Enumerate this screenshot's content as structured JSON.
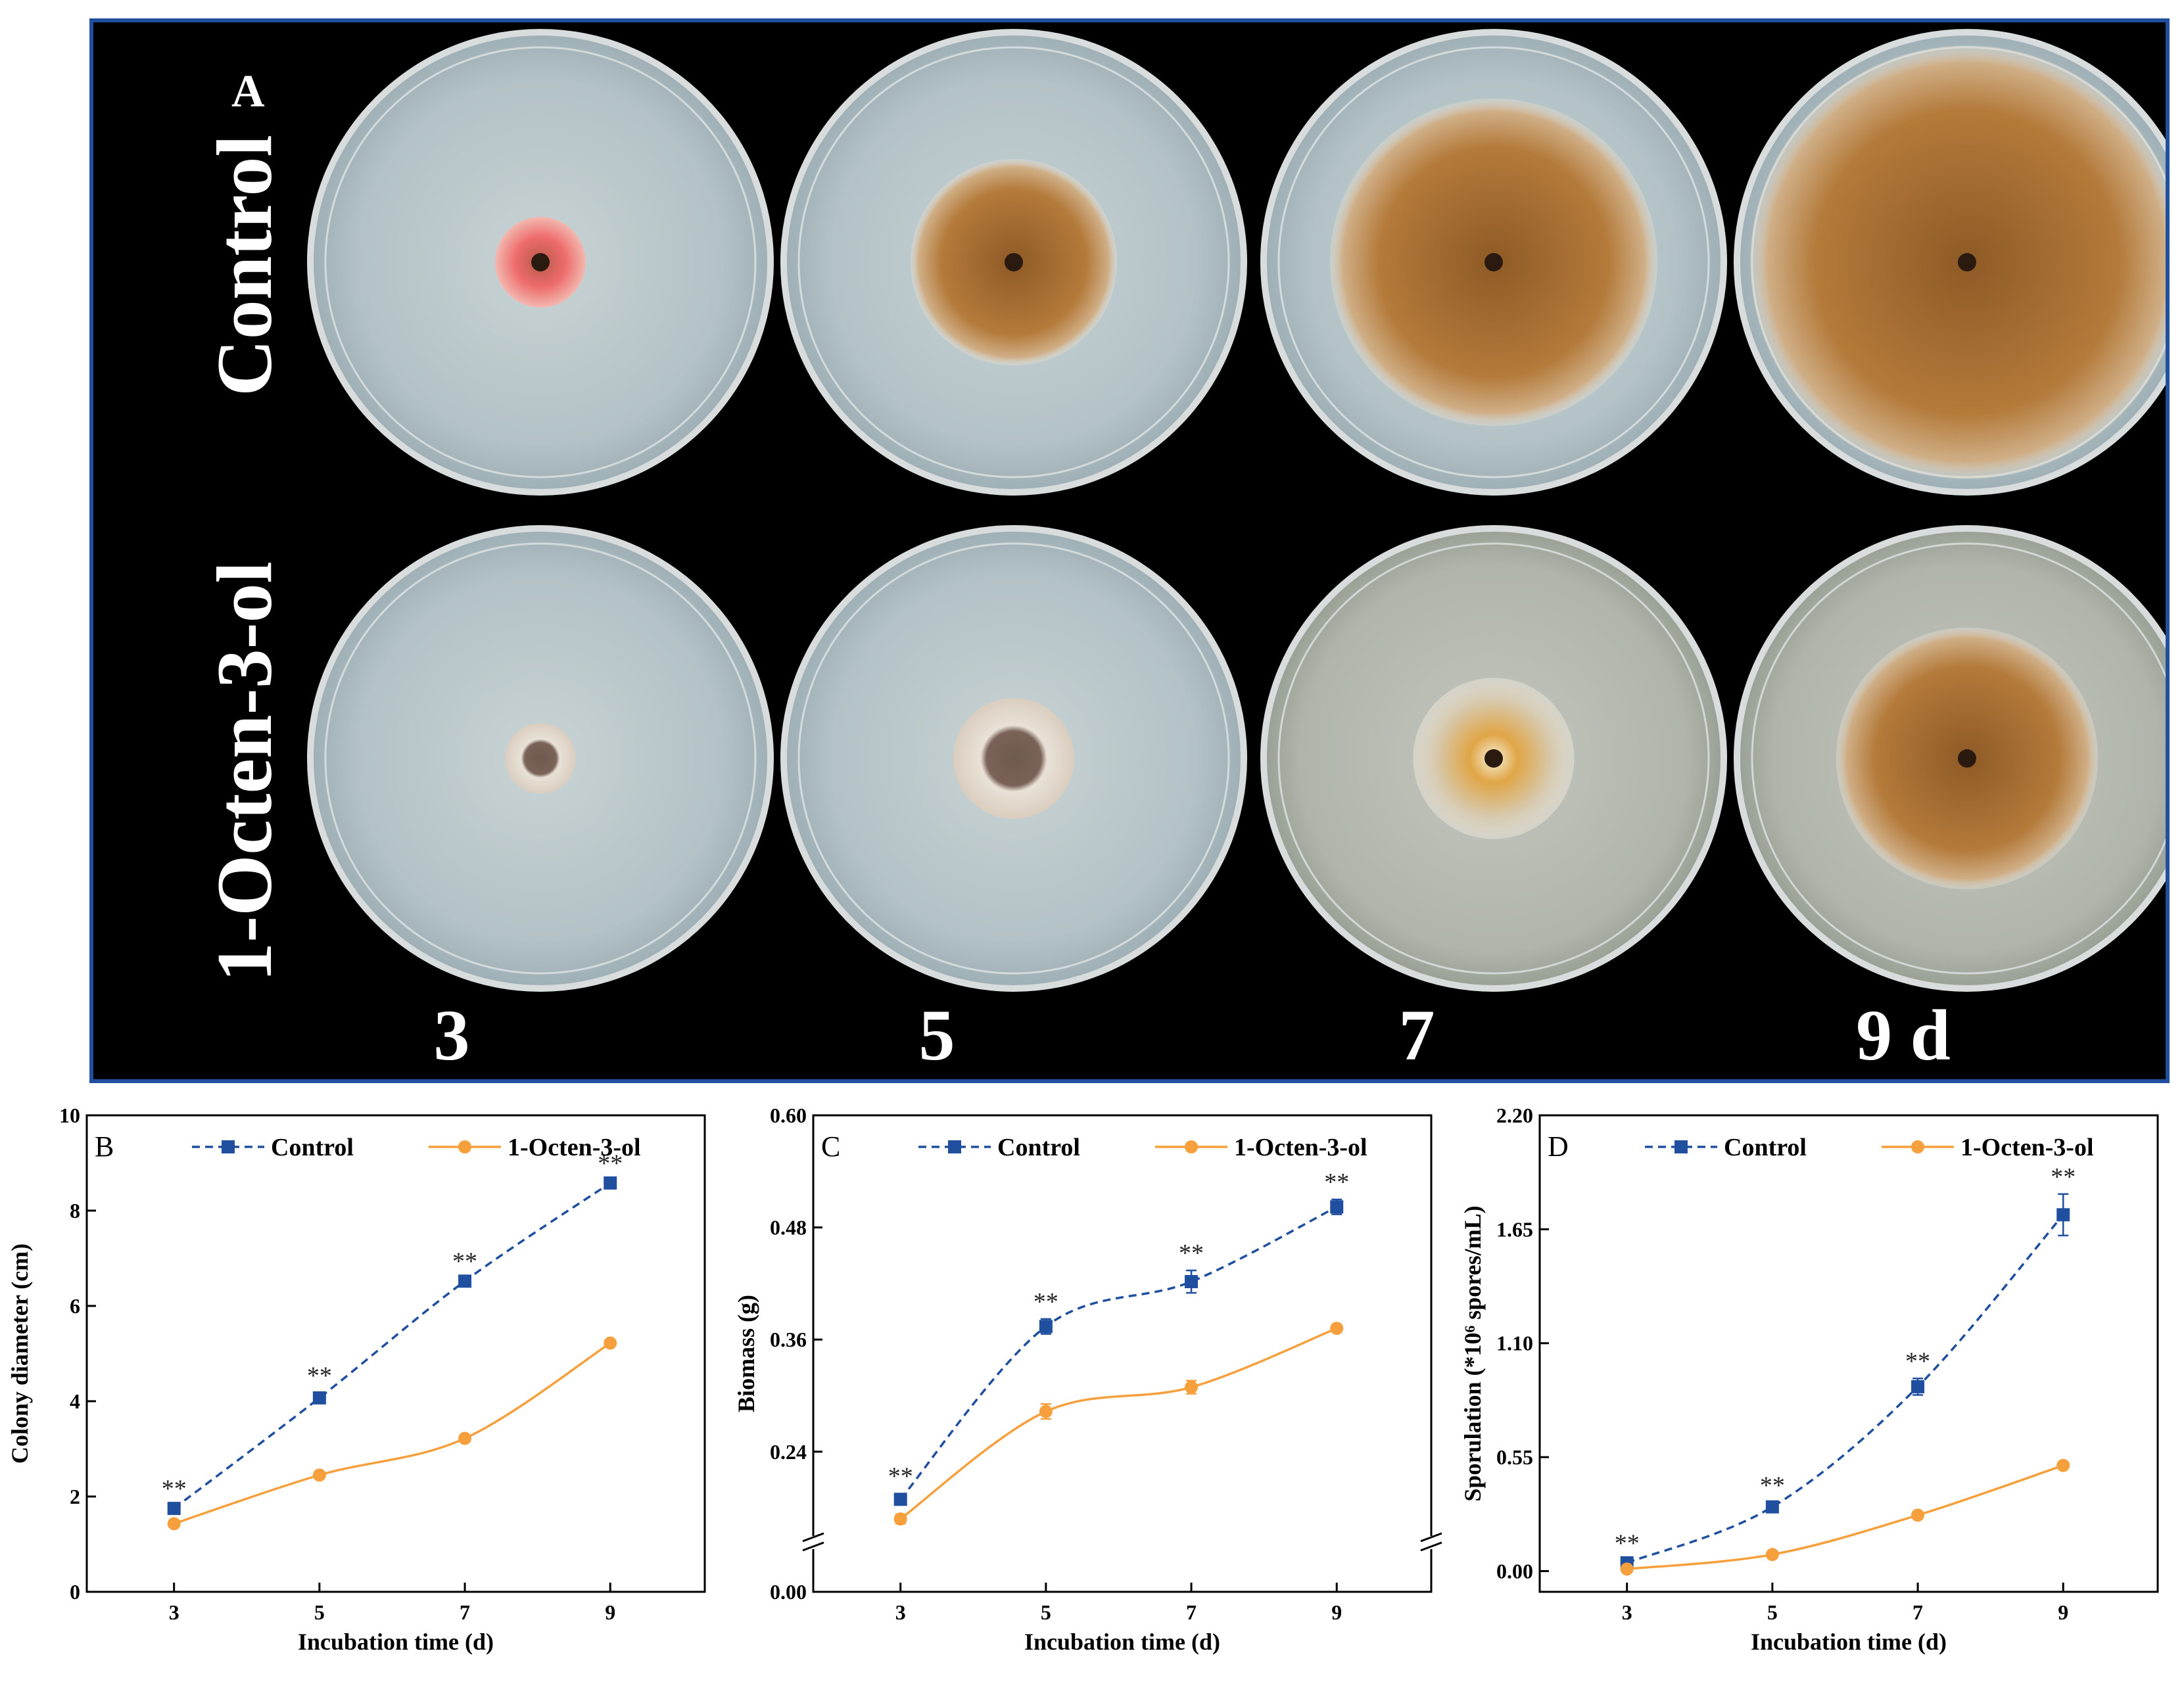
{
  "panel_a": {
    "label": "A",
    "row_labels": [
      "Control",
      "1-Octen-3-ol"
    ],
    "day_labels": [
      "3",
      "5",
      "7",
      "9 d"
    ],
    "colors": {
      "background": "#000000",
      "border": "#1f4f9e",
      "agar": "#b9c8cc",
      "colony_tan": "#b47a3a",
      "colony_pink": "#e8707a"
    },
    "colonies": {
      "control": [
        {
          "day": "3",
          "diameter_cm": 1.8
        },
        {
          "day": "5",
          "diameter_cm": 4.1
        },
        {
          "day": "7",
          "diameter_cm": 6.5
        },
        {
          "day": "9",
          "diameter_cm": 8.6
        }
      ],
      "treated": [
        {
          "day": "3",
          "diameter_cm": 1.4
        },
        {
          "day": "5",
          "diameter_cm": 2.4
        },
        {
          "day": "7",
          "diameter_cm": 3.2
        },
        {
          "day": "9",
          "diameter_cm": 5.2
        }
      ]
    }
  },
  "chart_data": [
    {
      "panel": "B",
      "type": "line",
      "xlabel": "Incubation time (d)",
      "ylabel": "Colony diameter (cm)",
      "x": [
        3,
        5,
        7,
        9
      ],
      "xticks": [
        "3",
        "5",
        "7",
        "9"
      ],
      "xlim": [
        1.8,
        10.3
      ],
      "ylim": [
        0,
        10
      ],
      "yticks": [
        "0",
        "2",
        "4",
        "6",
        "8",
        "10"
      ],
      "ytick_values": [
        0,
        2,
        4,
        6,
        8,
        10
      ],
      "legend_placement": "top",
      "series": [
        {
          "name": "Control",
          "values": [
            1.75,
            4.07,
            6.52,
            8.58
          ],
          "errors": [
            0.05,
            0.1,
            0.05,
            0.05
          ],
          "color": "#1f4f9e",
          "style": "dashed",
          "marker": "square"
        },
        {
          "name": "1-Octen-3-ol",
          "values": [
            1.43,
            2.45,
            3.22,
            5.22
          ],
          "errors": [
            0.04,
            0.04,
            0.05,
            0.04
          ],
          "color": "#f5a03c",
          "style": "solid",
          "marker": "circle"
        }
      ],
      "annotations": [
        "**",
        "**",
        "**",
        "**"
      ]
    },
    {
      "panel": "C",
      "type": "line",
      "xlabel": "Incubation time (d)",
      "ylabel": "Biomass (g)",
      "x": [
        3,
        5,
        7,
        9
      ],
      "xticks": [
        "3",
        "5",
        "7",
        "9"
      ],
      "xlim": [
        1.8,
        10.3
      ],
      "ylim": [
        0.09,
        0.6
      ],
      "yticks": [
        "0.00",
        "0.24",
        "0.36",
        "0.48",
        "0.60"
      ],
      "ytick_values": [
        0.09,
        0.24,
        0.36,
        0.48,
        0.6
      ],
      "axis_break": true,
      "legend_placement": "top",
      "series": [
        {
          "name": "Control",
          "values": [
            0.189,
            0.374,
            0.422,
            0.502
          ],
          "errors": [
            0.006,
            0.008,
            0.012,
            0.008
          ],
          "color": "#1f4f9e",
          "style": "dashed",
          "marker": "square"
        },
        {
          "name": "1-Octen-3-ol",
          "values": [
            0.168,
            0.283,
            0.309,
            0.372
          ],
          "errors": [
            0.005,
            0.008,
            0.007,
            0.004
          ],
          "color": "#f5a03c",
          "style": "solid",
          "marker": "circle"
        }
      ],
      "annotations": [
        "**",
        "**",
        "**",
        "**"
      ]
    },
    {
      "panel": "D",
      "type": "line",
      "xlabel": "Incubation time (d)",
      "ylabel": "Sporulation (*10⁶ spores/mL)",
      "x": [
        3,
        5,
        7,
        9
      ],
      "xticks": [
        "3",
        "5",
        "7",
        "9"
      ],
      "xlim": [
        1.8,
        10.3
      ],
      "ylim": [
        -0.1,
        2.2
      ],
      "yticks": [
        "0.00",
        "0.55",
        "1.10",
        "1.65",
        "2.20"
      ],
      "ytick_values": [
        0,
        0.55,
        1.1,
        1.65,
        2.2
      ],
      "legend_placement": "top",
      "series": [
        {
          "name": "Control",
          "values": [
            0.04,
            0.31,
            0.89,
            1.72
          ],
          "errors": [
            0.01,
            0.02,
            0.04,
            0.1
          ],
          "color": "#1f4f9e",
          "style": "dashed",
          "marker": "square"
        },
        {
          "name": "1-Octen-3-ol",
          "values": [
            0.01,
            0.08,
            0.27,
            0.51
          ],
          "errors": [
            0.005,
            0.01,
            0.01,
            0.01
          ],
          "color": "#f5a03c",
          "style": "solid",
          "marker": "circle"
        }
      ],
      "annotations": [
        "**",
        "**",
        "**",
        "**"
      ]
    }
  ]
}
